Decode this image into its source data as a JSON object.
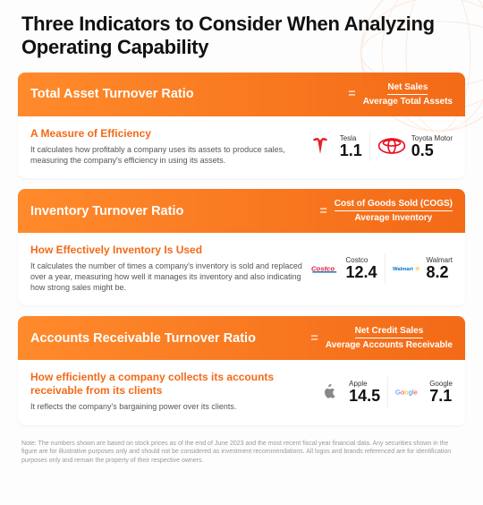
{
  "page_title": "Three Indicators to Consider When Analyzing Operating Capability",
  "header_gradient": "linear-gradient(90deg, #ff8a2b 0%, #f36a17 100%)",
  "cards": [
    {
      "title": "Total Asset Turnover Ratio",
      "numerator": "Net Sales",
      "denominator": "Average Total Assets",
      "subhead": "A Measure of Efficiency",
      "desc": "It calculates how profitably a company uses its assets to produce sales, measuring the company's efficiency in using its assets.",
      "metrics": [
        {
          "label": "Tesla",
          "value": "1.1",
          "logo_color": "#e82127",
          "logo": "tesla"
        },
        {
          "label": "Toyota Motor",
          "value": "0.5",
          "logo_color": "#eb0a1e",
          "logo": "toyota"
        }
      ]
    },
    {
      "title": "Inventory Turnover Ratio",
      "numerator": "Cost of Goods Sold (COGS)",
      "denominator": "Average Inventory",
      "subhead": "How Effectively Inventory Is Used",
      "desc": "It calculates the number of times a company's inventory is sold and replaced over a year, measuring how well it manages its inventory and also indicating how strong sales might be.",
      "metrics": [
        {
          "label": "Costco",
          "value": "12.4",
          "logo_color": "#e31837",
          "logo": "costco"
        },
        {
          "label": "Walmart",
          "value": "8.2",
          "logo_color": "#0071ce",
          "logo": "walmart"
        }
      ]
    },
    {
      "title": "Accounts Receivable Turnover Ratio",
      "numerator": "Net Credit Sales",
      "denominator": "Average Accounts Receivable",
      "subhead": "How efficiently a company collects its accounts receivable from its clients",
      "desc": "It reflects the company's bargaining power over its clients.",
      "metrics": [
        {
          "label": "Apple",
          "value": "14.5",
          "logo_color": "#888888",
          "logo": "apple"
        },
        {
          "label": "Google",
          "value": "7.1",
          "logo_color": "#4285f4",
          "logo": "google"
        }
      ]
    }
  ],
  "footnote": "Note: The numbers shown are based on stock prices as of the end of June 2023 and the most recent fiscal year financial data.\nAny securities shown in the figure are for illustrative purposes only and should not be considered as investment recommendations.\nAll logos and brands referenced are for identification purposes only and remain the property of their respective owners."
}
